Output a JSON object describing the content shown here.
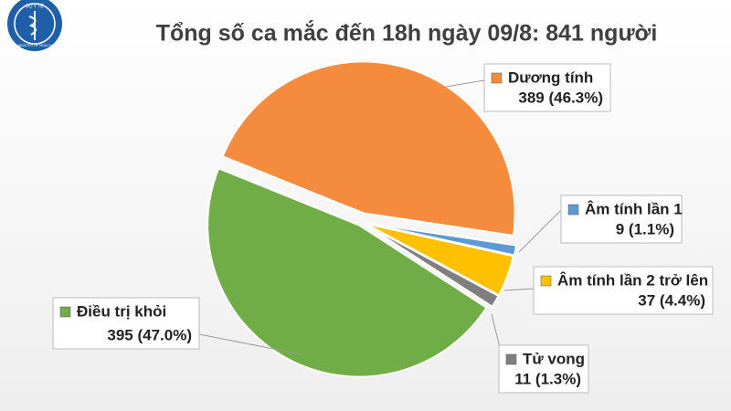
{
  "logo": {
    "top": "BỘ Y TẾ",
    "bottom": "MINISTRY OF HEALTH"
  },
  "chart_data": {
    "type": "pie",
    "title": "Tổng số ca mắc đến 18h ngày 09/8: 841 người",
    "categories": [
      "Dương tính",
      "Âm tính lần 1",
      "Âm tính lần 2 trở lên",
      "Tử vong",
      "Điều trị khỏi"
    ],
    "values": [
      389,
      9,
      37,
      11,
      395
    ],
    "value_labels": [
      "389 (46.3%)",
      "9 (1.1%)",
      "37 (4.4%)",
      "11 (1.3%)",
      "395 (47.0%)"
    ],
    "colors": [
      "#f58c3d",
      "#5b9bd5",
      "#ffc000",
      "#7f7f7f",
      "#70ad47"
    ]
  }
}
